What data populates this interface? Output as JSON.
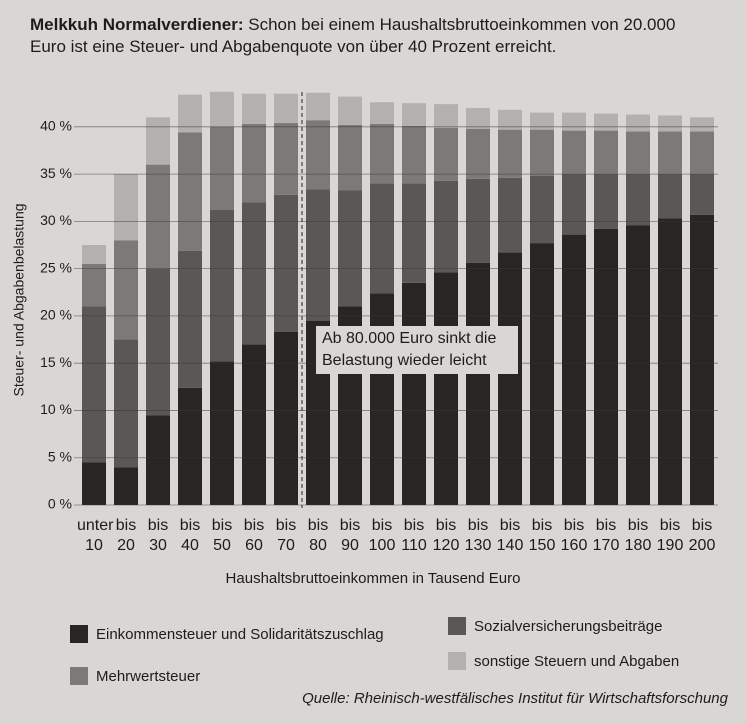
{
  "chart_data": {
    "type": "stacked_bar",
    "title_bold": "Melkkuh Normalverdiener:",
    "title": "Schon bei einem Haushaltsbruttoeinkommen von 20.000 Euro ist eine Steuer- und Abgabenquote von über 40 Prozent erreicht.",
    "y_label": "Steuer- und Abgabenbelastung",
    "x_label": "Haushaltsbruttoeinkommen in Tausend Euro",
    "annotation": "Ab 80.000 Euro sinkt die Belastung wieder leicht",
    "source": "Quelle: Rheinisch-westfälisches Institut für Wirtschaftsforschung",
    "categories": [
      "unter 10",
      "bis 20",
      "bis 30",
      "bis 40",
      "bis 50",
      "bis 60",
      "bis 70",
      "bis 80",
      "bis 90",
      "bis 100",
      "bis 110",
      "bis 120",
      "bis 130",
      "bis 140",
      "bis 150",
      "bis 160",
      "bis 170",
      "bis 180",
      "bis 190",
      "bis 200"
    ],
    "series": [
      {
        "name": "Einkommensteuer und Solidaritätszuschlag",
        "color": "#282624",
        "values": [
          4.5,
          4,
          9.5,
          12.4,
          15.2,
          17,
          18.3,
          19.5,
          21,
          22.4,
          23.5,
          24.6,
          25.6,
          26.7,
          27.7,
          28.6,
          29.2,
          29.6,
          30.3,
          30.7
        ]
      },
      {
        "name": "Sozialversicherungsbeiträge",
        "color": "#5a5856",
        "values": [
          16.5,
          13.5,
          15.5,
          14.5,
          16,
          15,
          14.5,
          13.9,
          12.3,
          11.6,
          10.5,
          9.7,
          8.9,
          7.9,
          7.1,
          6.4,
          5.8,
          5.4,
          4.7,
          4.3
        ]
      },
      {
        "name": "Mehrwertsteuer",
        "color": "#7c7a78",
        "values": [
          4.5,
          10.5,
          11,
          12.5,
          8.8,
          8.3,
          7.6,
          7.3,
          6.9,
          6.3,
          6.1,
          5.6,
          5.3,
          5.1,
          4.9,
          4.6,
          4.6,
          4.5,
          4.5,
          4.5
        ]
      },
      {
        "name": "sonstige Steuern und Abgaben",
        "color": "#b3b1af",
        "values": [
          2,
          7,
          5,
          4,
          3.7,
          3.2,
          3.1,
          2.9,
          3,
          2.3,
          2.4,
          2.5,
          2.2,
          2.1,
          1.8,
          1.9,
          1.8,
          1.8,
          1.7,
          1.5
        ]
      }
    ],
    "ylim": [
      0,
      44
    ],
    "yticks": [
      {
        "value": 0,
        "label": "0 %"
      },
      {
        "value": 5,
        "label": "5 %"
      },
      {
        "value": 10,
        "label": "10 %"
      },
      {
        "value": 15,
        "label": "15 %"
      },
      {
        "value": 20,
        "label": "20 %"
      },
      {
        "value": 25,
        "label": "25 %"
      },
      {
        "value": 30,
        "label": "30 %"
      },
      {
        "value": 35,
        "label": "35 %"
      },
      {
        "value": 40,
        "label": "40 %"
      }
    ],
    "grid": true
  }
}
